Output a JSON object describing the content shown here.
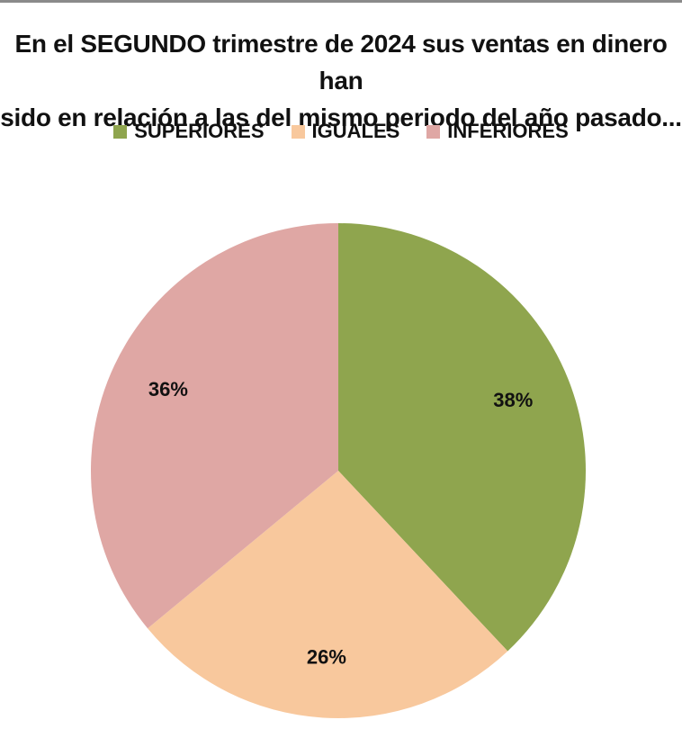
{
  "chart_data": {
    "type": "pie",
    "title_lines": [
      "En el SEGUNDO trimestre de 2024 sus ventas en dinero han",
      "sido en relación a las del mismo periodo del año pasado..."
    ],
    "categories": [
      "SUPERIORES",
      "IGUALES",
      "INFERIORES"
    ],
    "values": [
      38,
      26,
      36
    ],
    "labels": [
      "38%",
      "26%",
      "36%"
    ],
    "colors": [
      "#8fa54e",
      "#f8c89d",
      "#dfa7a4"
    ],
    "legend_position": "top",
    "start": "12 o'clock, clockwise"
  }
}
